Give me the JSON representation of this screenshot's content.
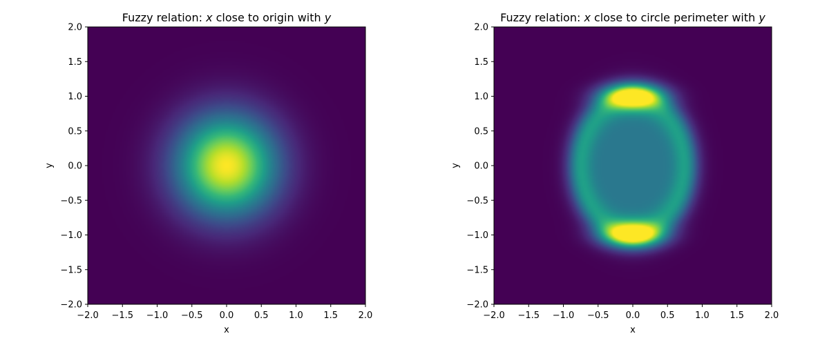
{
  "chart_data": [
    {
      "type": "heatmap",
      "title_prefix": "Fuzzy relation: ",
      "title_var1": "x",
      "title_middle": " close to origin with ",
      "title_var2": "y",
      "xlabel": "x",
      "ylabel": "y",
      "xlim": [
        -2.0,
        2.0
      ],
      "ylim": [
        -2.0,
        2.0
      ],
      "xticks": [
        "−2.0",
        "−1.5",
        "−1.0",
        "−0.5",
        "0.0",
        "0.5",
        "1.0",
        "1.5",
        "2.0"
      ],
      "yticks": [
        "−2.0",
        "−1.5",
        "−1.0",
        "−0.5",
        "0.0",
        "0.5",
        "1.0",
        "1.5",
        "2.0"
      ],
      "function": "membership = exp(-(x^2 + y^2) / (2 * 0.5^2)) — Gaussian peak of 1.0 at the origin",
      "colormap": "viridis",
      "value_range": [
        0,
        1
      ],
      "grid": false
    },
    {
      "type": "heatmap",
      "title_prefix": "Fuzzy relation: ",
      "title_var1": "x",
      "title_middle": " close to circle perimeter with ",
      "title_var2": "y",
      "xlabel": "x",
      "ylabel": "y",
      "xlim": [
        -2.0,
        2.0
      ],
      "ylim": [
        -2.0,
        2.0
      ],
      "xticks": [
        "−2.0",
        "−1.5",
        "−1.0",
        "−0.5",
        "0.0",
        "0.5",
        "1.0",
        "1.5",
        "2.0"
      ],
      "yticks": [
        "−2.0",
        "−1.5",
        "−1.0",
        "−0.5",
        "0.0",
        "0.5",
        "1.0",
        "1.5",
        "2.0"
      ],
      "function": "membership peaks of 1.0 at (0, 1) and (0, -1); ring of ~0.6 along an ellipse spanning x in about [-1.1, 1.1]; ~0.4 at the center; ~0 outside",
      "colormap": "viridis",
      "value_range": [
        0,
        1
      ],
      "grid": false
    }
  ],
  "colors": {
    "viridis": [
      "#440154",
      "#482878",
      "#3e4989",
      "#31688e",
      "#26828e",
      "#1f9e89",
      "#35b779",
      "#6ece58",
      "#b5de2b",
      "#fde725"
    ]
  }
}
